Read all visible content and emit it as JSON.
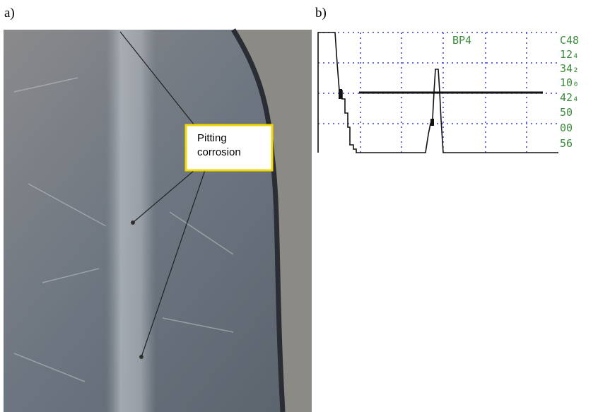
{
  "panels": [
    {
      "label": "a)",
      "annotation": [
        "Pitting",
        "corrosion"
      ]
    },
    {
      "label": "b)",
      "screen_label": "BP4",
      "readings": [
        "C48",
        "12₄",
        "34₂",
        "10₀",
        "42₄",
        "50",
        "00",
        "56"
      ]
    }
  ]
}
